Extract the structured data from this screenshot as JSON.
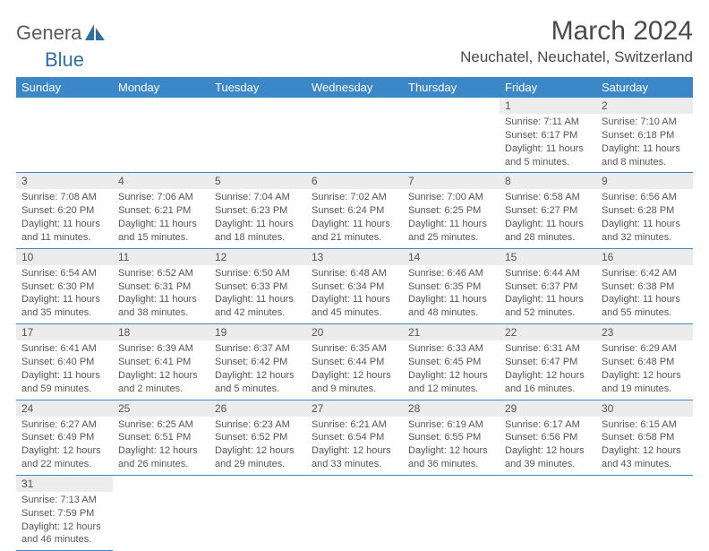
{
  "logo": {
    "text1": "Genera",
    "text2": "Blue"
  },
  "title": "March 2024",
  "location": "Neuchatel, Neuchatel, Switzerland",
  "colors": {
    "header_bg": "#3b87c8",
    "row_divider": "#3b87c8",
    "daynum_bg": "#ececec",
    "logo_blue": "#2f6fa7",
    "text": "#555555"
  },
  "weekdays": [
    "Sunday",
    "Monday",
    "Tuesday",
    "Wednesday",
    "Thursday",
    "Friday",
    "Saturday"
  ],
  "weeks": [
    [
      null,
      null,
      null,
      null,
      null,
      {
        "day": "1",
        "sunrise": "Sunrise: 7:11 AM",
        "sunset": "Sunset: 6:17 PM",
        "daylight": "Daylight: 11 hours and 5 minutes."
      },
      {
        "day": "2",
        "sunrise": "Sunrise: 7:10 AM",
        "sunset": "Sunset: 6:18 PM",
        "daylight": "Daylight: 11 hours and 8 minutes."
      }
    ],
    [
      {
        "day": "3",
        "sunrise": "Sunrise: 7:08 AM",
        "sunset": "Sunset: 6:20 PM",
        "daylight": "Daylight: 11 hours and 11 minutes."
      },
      {
        "day": "4",
        "sunrise": "Sunrise: 7:06 AM",
        "sunset": "Sunset: 6:21 PM",
        "daylight": "Daylight: 11 hours and 15 minutes."
      },
      {
        "day": "5",
        "sunrise": "Sunrise: 7:04 AM",
        "sunset": "Sunset: 6:23 PM",
        "daylight": "Daylight: 11 hours and 18 minutes."
      },
      {
        "day": "6",
        "sunrise": "Sunrise: 7:02 AM",
        "sunset": "Sunset: 6:24 PM",
        "daylight": "Daylight: 11 hours and 21 minutes."
      },
      {
        "day": "7",
        "sunrise": "Sunrise: 7:00 AM",
        "sunset": "Sunset: 6:25 PM",
        "daylight": "Daylight: 11 hours and 25 minutes."
      },
      {
        "day": "8",
        "sunrise": "Sunrise: 6:58 AM",
        "sunset": "Sunset: 6:27 PM",
        "daylight": "Daylight: 11 hours and 28 minutes."
      },
      {
        "day": "9",
        "sunrise": "Sunrise: 6:56 AM",
        "sunset": "Sunset: 6:28 PM",
        "daylight": "Daylight: 11 hours and 32 minutes."
      }
    ],
    [
      {
        "day": "10",
        "sunrise": "Sunrise: 6:54 AM",
        "sunset": "Sunset: 6:30 PM",
        "daylight": "Daylight: 11 hours and 35 minutes."
      },
      {
        "day": "11",
        "sunrise": "Sunrise: 6:52 AM",
        "sunset": "Sunset: 6:31 PM",
        "daylight": "Daylight: 11 hours and 38 minutes."
      },
      {
        "day": "12",
        "sunrise": "Sunrise: 6:50 AM",
        "sunset": "Sunset: 6:33 PM",
        "daylight": "Daylight: 11 hours and 42 minutes."
      },
      {
        "day": "13",
        "sunrise": "Sunrise: 6:48 AM",
        "sunset": "Sunset: 6:34 PM",
        "daylight": "Daylight: 11 hours and 45 minutes."
      },
      {
        "day": "14",
        "sunrise": "Sunrise: 6:46 AM",
        "sunset": "Sunset: 6:35 PM",
        "daylight": "Daylight: 11 hours and 48 minutes."
      },
      {
        "day": "15",
        "sunrise": "Sunrise: 6:44 AM",
        "sunset": "Sunset: 6:37 PM",
        "daylight": "Daylight: 11 hours and 52 minutes."
      },
      {
        "day": "16",
        "sunrise": "Sunrise: 6:42 AM",
        "sunset": "Sunset: 6:38 PM",
        "daylight": "Daylight: 11 hours and 55 minutes."
      }
    ],
    [
      {
        "day": "17",
        "sunrise": "Sunrise: 6:41 AM",
        "sunset": "Sunset: 6:40 PM",
        "daylight": "Daylight: 11 hours and 59 minutes."
      },
      {
        "day": "18",
        "sunrise": "Sunrise: 6:39 AM",
        "sunset": "Sunset: 6:41 PM",
        "daylight": "Daylight: 12 hours and 2 minutes."
      },
      {
        "day": "19",
        "sunrise": "Sunrise: 6:37 AM",
        "sunset": "Sunset: 6:42 PM",
        "daylight": "Daylight: 12 hours and 5 minutes."
      },
      {
        "day": "20",
        "sunrise": "Sunrise: 6:35 AM",
        "sunset": "Sunset: 6:44 PM",
        "daylight": "Daylight: 12 hours and 9 minutes."
      },
      {
        "day": "21",
        "sunrise": "Sunrise: 6:33 AM",
        "sunset": "Sunset: 6:45 PM",
        "daylight": "Daylight: 12 hours and 12 minutes."
      },
      {
        "day": "22",
        "sunrise": "Sunrise: 6:31 AM",
        "sunset": "Sunset: 6:47 PM",
        "daylight": "Daylight: 12 hours and 16 minutes."
      },
      {
        "day": "23",
        "sunrise": "Sunrise: 6:29 AM",
        "sunset": "Sunset: 6:48 PM",
        "daylight": "Daylight: 12 hours and 19 minutes."
      }
    ],
    [
      {
        "day": "24",
        "sunrise": "Sunrise: 6:27 AM",
        "sunset": "Sunset: 6:49 PM",
        "daylight": "Daylight: 12 hours and 22 minutes."
      },
      {
        "day": "25",
        "sunrise": "Sunrise: 6:25 AM",
        "sunset": "Sunset: 6:51 PM",
        "daylight": "Daylight: 12 hours and 26 minutes."
      },
      {
        "day": "26",
        "sunrise": "Sunrise: 6:23 AM",
        "sunset": "Sunset: 6:52 PM",
        "daylight": "Daylight: 12 hours and 29 minutes."
      },
      {
        "day": "27",
        "sunrise": "Sunrise: 6:21 AM",
        "sunset": "Sunset: 6:54 PM",
        "daylight": "Daylight: 12 hours and 33 minutes."
      },
      {
        "day": "28",
        "sunrise": "Sunrise: 6:19 AM",
        "sunset": "Sunset: 6:55 PM",
        "daylight": "Daylight: 12 hours and 36 minutes."
      },
      {
        "day": "29",
        "sunrise": "Sunrise: 6:17 AM",
        "sunset": "Sunset: 6:56 PM",
        "daylight": "Daylight: 12 hours and 39 minutes."
      },
      {
        "day": "30",
        "sunrise": "Sunrise: 6:15 AM",
        "sunset": "Sunset: 6:58 PM",
        "daylight": "Daylight: 12 hours and 43 minutes."
      }
    ],
    [
      {
        "day": "31",
        "sunrise": "Sunrise: 7:13 AM",
        "sunset": "Sunset: 7:59 PM",
        "daylight": "Daylight: 12 hours and 46 minutes."
      },
      null,
      null,
      null,
      null,
      null,
      null
    ]
  ]
}
